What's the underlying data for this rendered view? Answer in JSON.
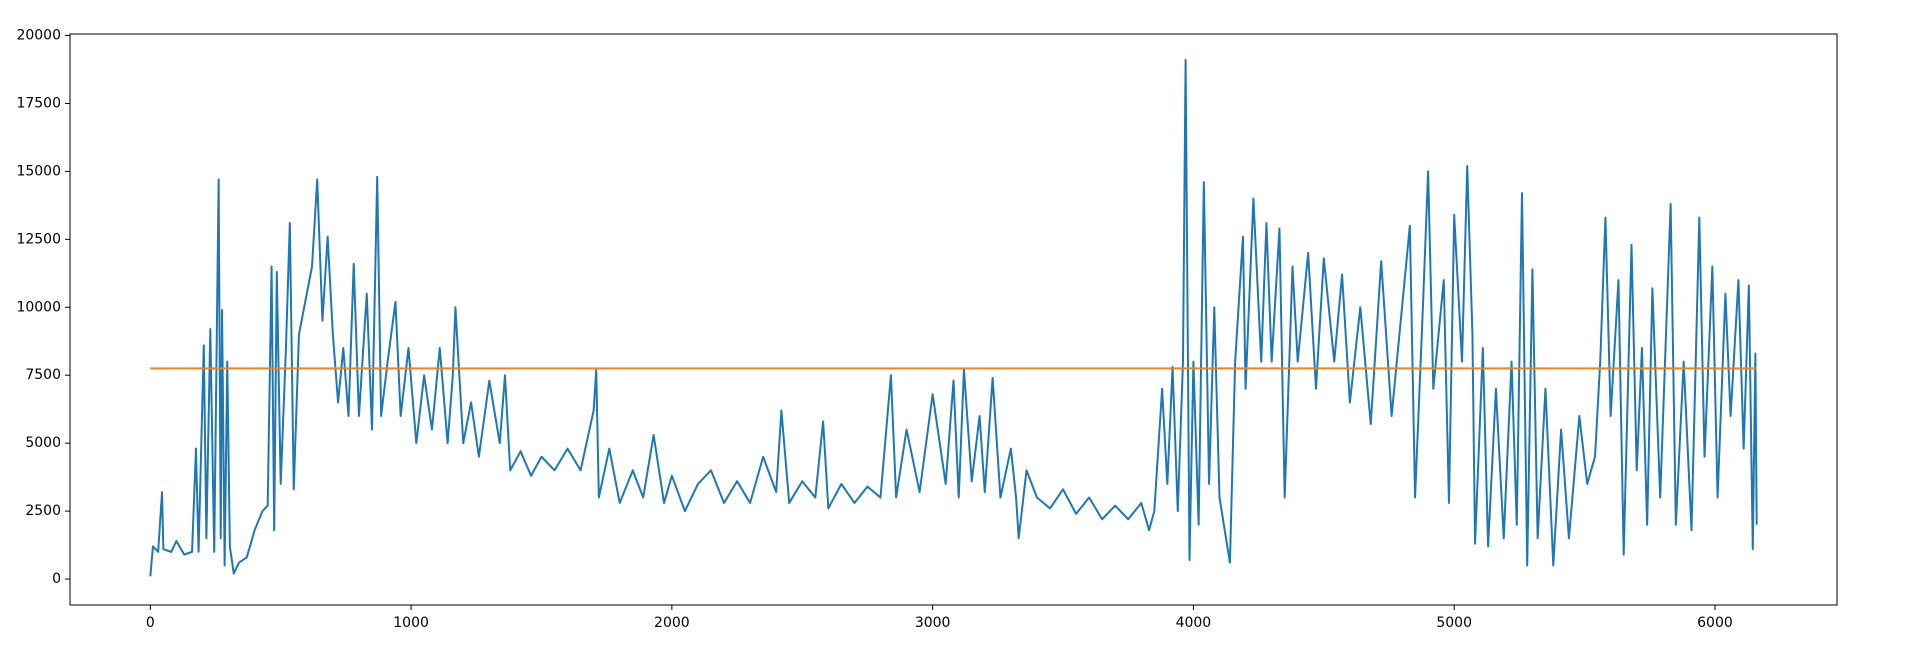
{
  "chart_data": {
    "type": "line",
    "xlim": [
      -308,
      6468
    ],
    "ylim": [
      -955,
      20055
    ],
    "xticks": [
      0,
      1000,
      2000,
      3000,
      4000,
      5000,
      6000
    ],
    "yticks": [
      0,
      2500,
      5000,
      7500,
      10000,
      12500,
      15000,
      17500,
      20000
    ],
    "series": [
      {
        "color": "#1f77b4",
        "x": [
          0,
          10,
          30,
          45,
          50,
          80,
          100,
          130,
          160,
          175,
          185,
          205,
          215,
          230,
          245,
          262,
          270,
          275,
          285,
          295,
          305,
          320,
          340,
          370,
          400,
          430,
          450,
          465,
          475,
          485,
          500,
          520,
          535,
          550,
          570,
          600,
          620,
          640,
          660,
          680,
          700,
          720,
          740,
          760,
          780,
          800,
          830,
          850,
          870,
          885,
          910,
          940,
          960,
          990,
          1020,
          1050,
          1080,
          1110,
          1140,
          1160,
          1170,
          1200,
          1230,
          1260,
          1300,
          1340,
          1360,
          1380,
          1420,
          1460,
          1500,
          1550,
          1600,
          1650,
          1700,
          1710,
          1720,
          1760,
          1800,
          1850,
          1890,
          1930,
          1970,
          2000,
          2050,
          2100,
          2150,
          2200,
          2250,
          2300,
          2350,
          2400,
          2420,
          2450,
          2500,
          2550,
          2580,
          2600,
          2650,
          2700,
          2750,
          2800,
          2840,
          2860,
          2900,
          2950,
          3000,
          3050,
          3080,
          3100,
          3120,
          3150,
          3180,
          3200,
          3230,
          3260,
          3300,
          3320,
          3330,
          3360,
          3400,
          3450,
          3500,
          3550,
          3600,
          3650,
          3700,
          3750,
          3800,
          3830,
          3850,
          3880,
          3900,
          3920,
          3940,
          3960,
          3970,
          3985,
          4000,
          4020,
          4040,
          4060,
          4080,
          4100,
          4140,
          4160,
          4190,
          4200,
          4230,
          4260,
          4280,
          4300,
          4330,
          4350,
          4380,
          4400,
          4440,
          4470,
          4500,
          4540,
          4570,
          4600,
          4640,
          4680,
          4720,
          4760,
          4800,
          4830,
          4850,
          4880,
          4900,
          4920,
          4960,
          4980,
          5000,
          5030,
          5050,
          5070,
          5080,
          5110,
          5130,
          5160,
          5190,
          5220,
          5240,
          5260,
          5280,
          5300,
          5320,
          5350,
          5380,
          5410,
          5440,
          5480,
          5510,
          5540,
          5560,
          5580,
          5600,
          5630,
          5650,
          5680,
          5700,
          5720,
          5740,
          5760,
          5790,
          5830,
          5850,
          5880,
          5910,
          5940,
          5960,
          5990,
          6010,
          6040,
          6060,
          6090,
          6110,
          6130,
          6145,
          6155,
          6160
        ],
        "values": [
          100,
          1200,
          1000,
          3200,
          1100,
          1000,
          1400,
          900,
          1000,
          4800,
          1000,
          8600,
          1500,
          9200,
          1000,
          14700,
          1500,
          9900,
          500,
          8000,
          1200,
          200,
          600,
          800,
          1800,
          2500,
          2700,
          11500,
          1800,
          11300,
          3500,
          8500,
          13100,
          3300,
          9000,
          10500,
          11500,
          14700,
          9500,
          12600,
          9000,
          6500,
          8500,
          6000,
          11600,
          6000,
          10500,
          5500,
          14800,
          6000,
          8000,
          10200,
          6000,
          8500,
          5000,
          7500,
          5500,
          8500,
          5000,
          7500,
          10000,
          5000,
          6500,
          4500,
          7300,
          5000,
          7500,
          4000,
          4700,
          3800,
          4500,
          4000,
          4800,
          4000,
          6200,
          7700,
          3000,
          4800,
          2800,
          4000,
          3000,
          5300,
          2800,
          3800,
          2500,
          3500,
          4000,
          2800,
          3600,
          2800,
          4500,
          3200,
          6200,
          2800,
          3600,
          3000,
          5800,
          2600,
          3500,
          2800,
          3400,
          3000,
          7500,
          3000,
          5500,
          3200,
          6800,
          3500,
          7300,
          3000,
          7700,
          3600,
          6000,
          3200,
          7400,
          3000,
          4800,
          3000,
          1500,
          4000,
          3000,
          2600,
          3300,
          2400,
          3000,
          2200,
          2700,
          2200,
          2800,
          1800,
          2500,
          7000,
          3500,
          7800,
          2500,
          8000,
          19100,
          700,
          8000,
          2000,
          14600,
          3500,
          10000,
          3000,
          600,
          8000,
          12600,
          7000,
          14000,
          8000,
          13100,
          8000,
          12900,
          3000,
          11500,
          8000,
          12000,
          7000,
          11800,
          8000,
          11200,
          6500,
          10000,
          5700,
          11700,
          6000,
          10000,
          13000,
          3000,
          10000,
          15000,
          7000,
          11000,
          2800,
          13400,
          8000,
          15200,
          9000,
          1300,
          8500,
          1200,
          7000,
          1500,
          8000,
          2000,
          14200,
          500,
          11400,
          1500,
          7000,
          500,
          5500,
          1500,
          6000,
          3500,
          4500,
          8000,
          13300,
          6000,
          11000,
          900,
          12300,
          4000,
          8500,
          2000,
          10700,
          3000,
          13800,
          2000,
          8000,
          1800,
          13300,
          4500,
          11500,
          3000,
          10500,
          6000,
          11000,
          4800,
          10800,
          1100,
          8300,
          2000
        ]
      },
      {
        "color": "#ff7f0e",
        "x": [
          0,
          6160
        ],
        "values": [
          7750,
          7750
        ]
      }
    ]
  }
}
